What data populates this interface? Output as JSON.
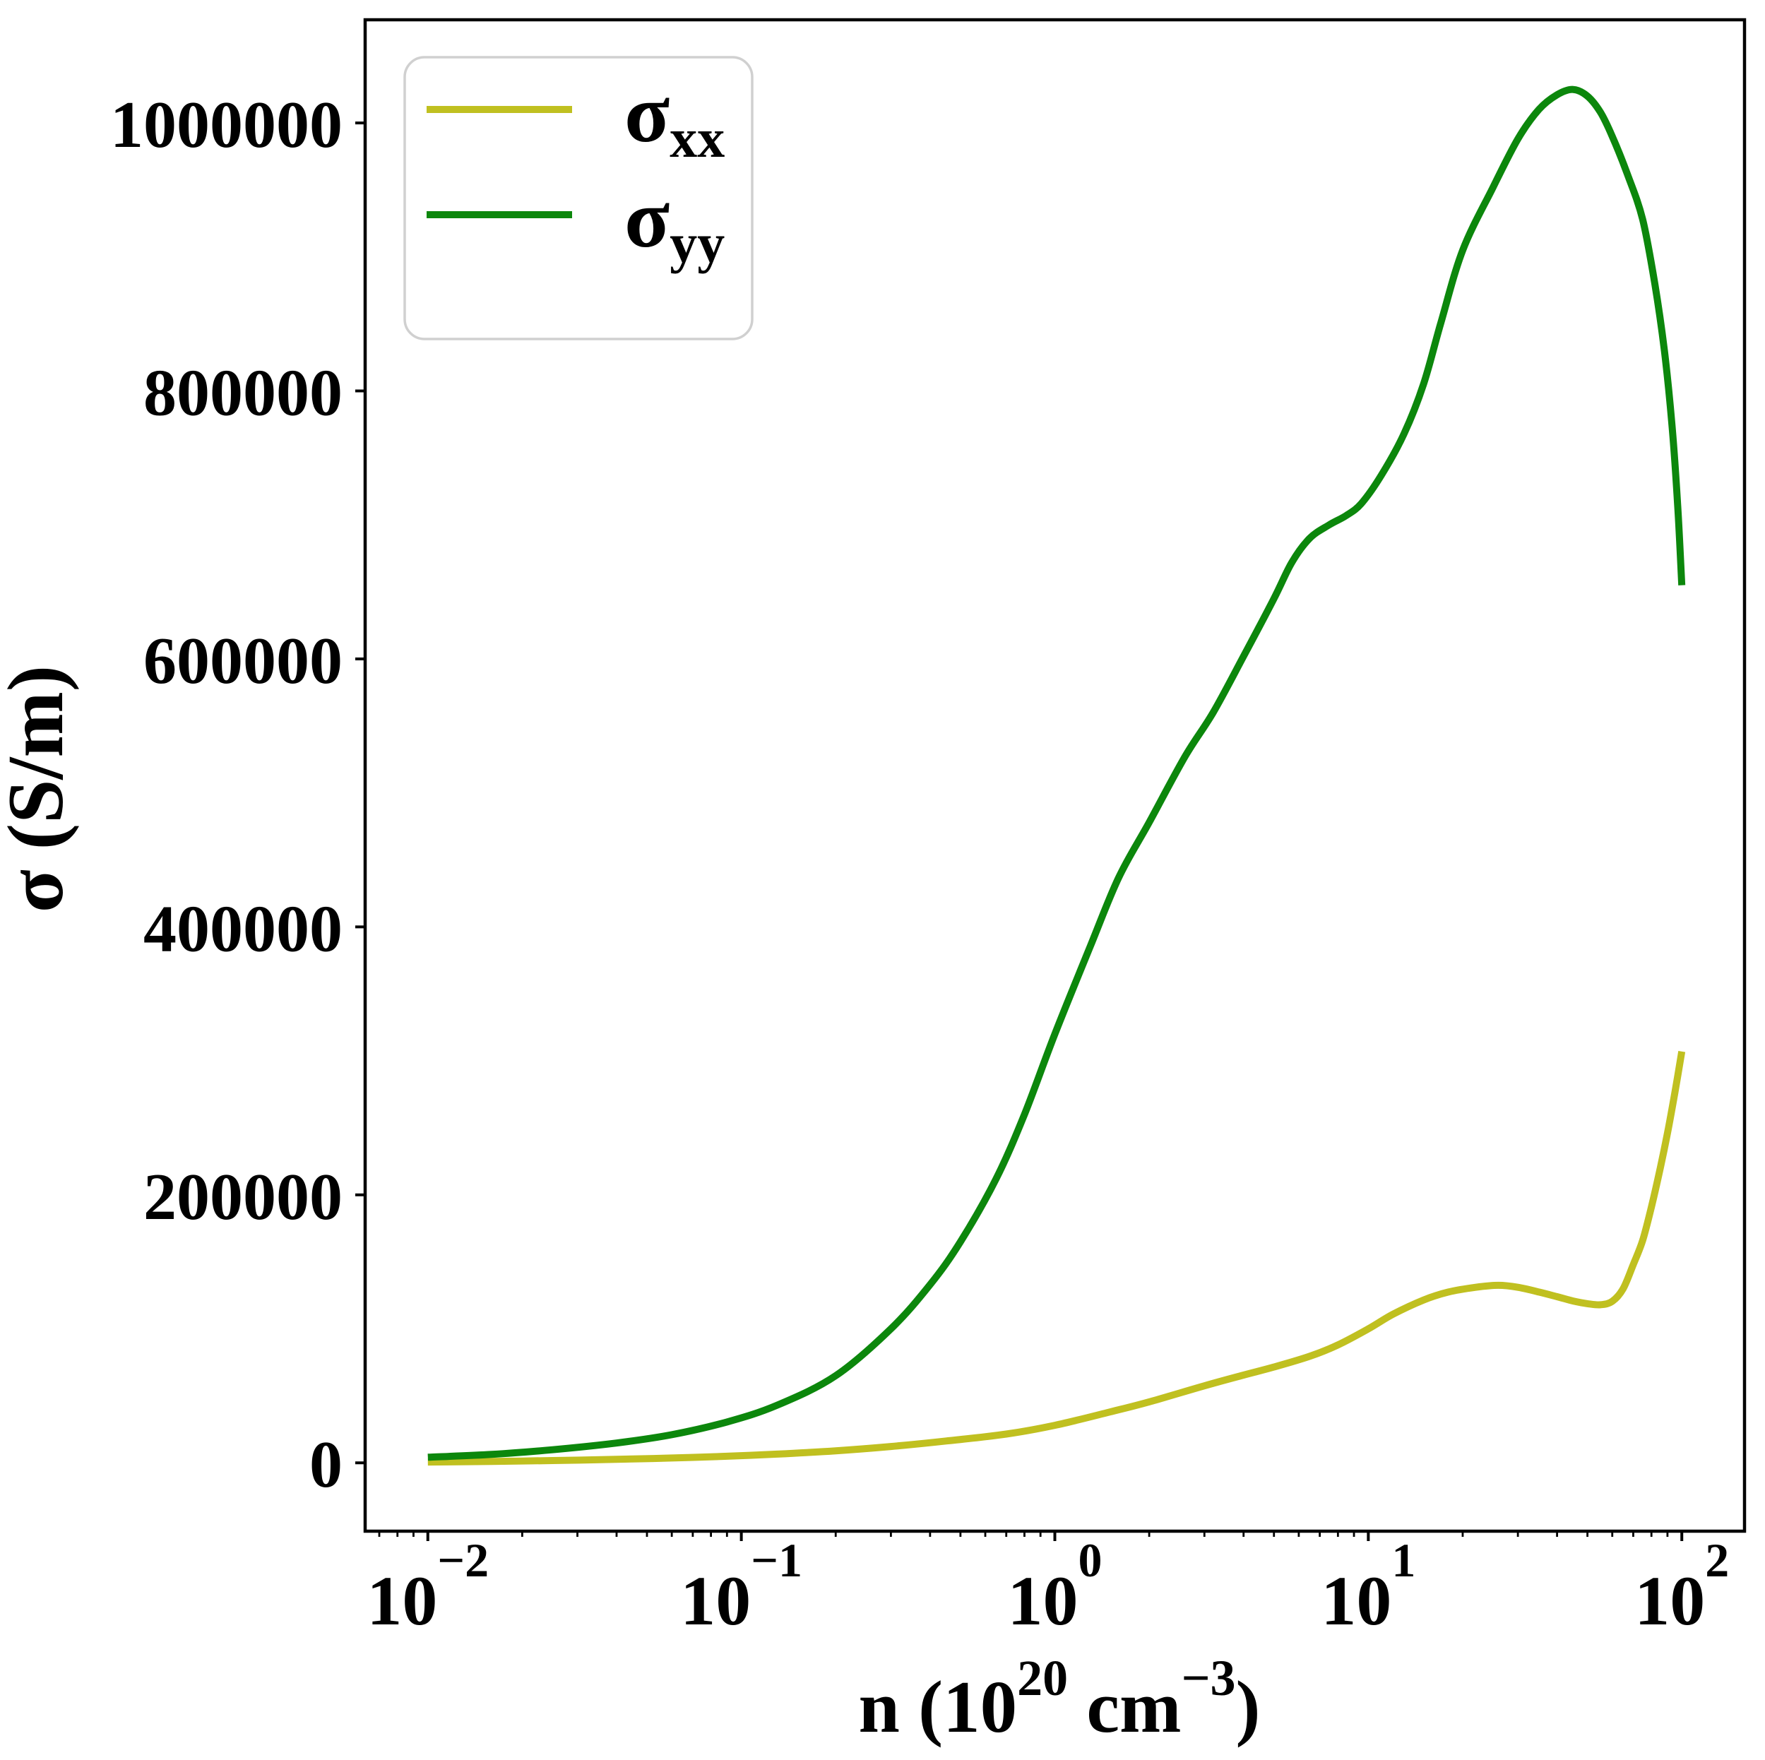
{
  "figure": {
    "background": "#ffffff",
    "spine_color": "#000000",
    "text_color": "#000000"
  },
  "labels": {
    "ylabel": "σ (S/m)",
    "xlabel_plain": "n (10^20 cm^-3)",
    "xlabel_parts": [
      {
        "text": "n (10"
      },
      {
        "text": "20",
        "style": "sup"
      },
      {
        "text": " cm"
      },
      {
        "text": "−3",
        "style": "sup"
      },
      {
        "text": ")"
      }
    ]
  },
  "legend": {
    "border_color": "#d0d0d0",
    "background": "#ffffff",
    "position": "upper left",
    "entries": [
      {
        "base": "σ",
        "sub": "xx",
        "color": "#c0c020"
      },
      {
        "base": "σ",
        "sub": "yy",
        "color": "#0c870c"
      }
    ]
  },
  "chart_data": {
    "type": "line",
    "title": "",
    "xlabel": "n (10^20 cm^-3)",
    "ylabel": "σ (S/m)",
    "xscale": "log",
    "yscale": "linear",
    "grid": false,
    "xlim": [
      0.00631,
      158.5
    ],
    "ylim": [
      -51000,
      1077000
    ],
    "x_major_ticks": [
      0.01,
      0.1,
      1,
      10,
      100
    ],
    "x_tick_labels": [
      {
        "base": "10",
        "exp": "−2"
      },
      {
        "base": "10",
        "exp": "−1"
      },
      {
        "base": "10",
        "exp": "0"
      },
      {
        "base": "10",
        "exp": "1"
      },
      {
        "base": "10",
        "exp": "2"
      }
    ],
    "y_ticks": [
      0,
      200000,
      400000,
      600000,
      800000,
      1000000
    ],
    "y_tick_labels": [
      "0",
      "200000",
      "400000",
      "600000",
      "800000",
      "1000000"
    ],
    "legend_position": "upper left",
    "series": [
      {
        "name": "σxx",
        "color": "#c0c020",
        "linewidth": 10,
        "points": [
          [
            0.01,
            600
          ],
          [
            0.016,
            1050
          ],
          [
            0.025,
            1700
          ],
          [
            0.04,
            2600
          ],
          [
            0.06,
            3600
          ],
          [
            0.09,
            4900
          ],
          [
            0.13,
            6500
          ],
          [
            0.2,
            9000
          ],
          [
            0.3,
            12200
          ],
          [
            0.45,
            16300
          ],
          [
            0.7,
            21500
          ],
          [
            1.0,
            28000
          ],
          [
            1.5,
            38000
          ],
          [
            2.0,
            45500
          ],
          [
            3.0,
            57500
          ],
          [
            4.0,
            65500
          ],
          [
            5.0,
            71500
          ],
          [
            6.5,
            79500
          ],
          [
            8.0,
            88000
          ],
          [
            10,
            100000
          ],
          [
            12,
            111000
          ],
          [
            15,
            121500
          ],
          [
            18,
            127500
          ],
          [
            22,
            131000
          ],
          [
            26,
            132500
          ],
          [
            30,
            131000
          ],
          [
            35,
            127500
          ],
          [
            40,
            124000
          ],
          [
            45,
            120800
          ],
          [
            50,
            118800
          ],
          [
            55,
            118000
          ],
          [
            60,
            120500
          ],
          [
            65,
            130000
          ],
          [
            70,
            148000
          ],
          [
            75,
            166000
          ],
          [
            80,
            191000
          ],
          [
            85,
            218000
          ],
          [
            90,
            246000
          ],
          [
            95,
            276000
          ],
          [
            100,
            307000
          ]
        ]
      },
      {
        "name": "σyy",
        "color": "#0c870c",
        "linewidth": 10,
        "points": [
          [
            0.01,
            4200
          ],
          [
            0.016,
            6300
          ],
          [
            0.025,
            9800
          ],
          [
            0.04,
            14800
          ],
          [
            0.06,
            21000
          ],
          [
            0.09,
            30500
          ],
          [
            0.13,
            43000
          ],
          [
            0.2,
            65000
          ],
          [
            0.3,
            100000
          ],
          [
            0.4,
            133000
          ],
          [
            0.5,
            165000
          ],
          [
            0.65,
            212000
          ],
          [
            0.8,
            260000
          ],
          [
            1.0,
            320000
          ],
          [
            1.3,
            386000
          ],
          [
            1.6,
            437000
          ],
          [
            2.0,
            478000
          ],
          [
            2.6,
            527000
          ],
          [
            3.2,
            560000
          ],
          [
            4.0,
            602000
          ],
          [
            5.0,
            645000
          ],
          [
            5.7,
            672000
          ],
          [
            6.5,
            690000
          ],
          [
            7.5,
            700000
          ],
          [
            8.5,
            707000
          ],
          [
            9.5,
            716000
          ],
          [
            11,
            737000
          ],
          [
            13,
            768000
          ],
          [
            15,
            805000
          ],
          [
            17,
            850000
          ],
          [
            20,
            905000
          ],
          [
            25,
            952000
          ],
          [
            30,
            988000
          ],
          [
            35,
            1010000
          ],
          [
            40,
            1021000
          ],
          [
            45,
            1025000
          ],
          [
            50,
            1020000
          ],
          [
            55,
            1008000
          ],
          [
            60,
            990000
          ],
          [
            67,
            962000
          ],
          [
            75,
            928000
          ],
          [
            82,
            880000
          ],
          [
            88,
            830000
          ],
          [
            93,
            775000
          ],
          [
            97,
            715000
          ],
          [
            100,
            655000
          ]
        ]
      }
    ]
  }
}
